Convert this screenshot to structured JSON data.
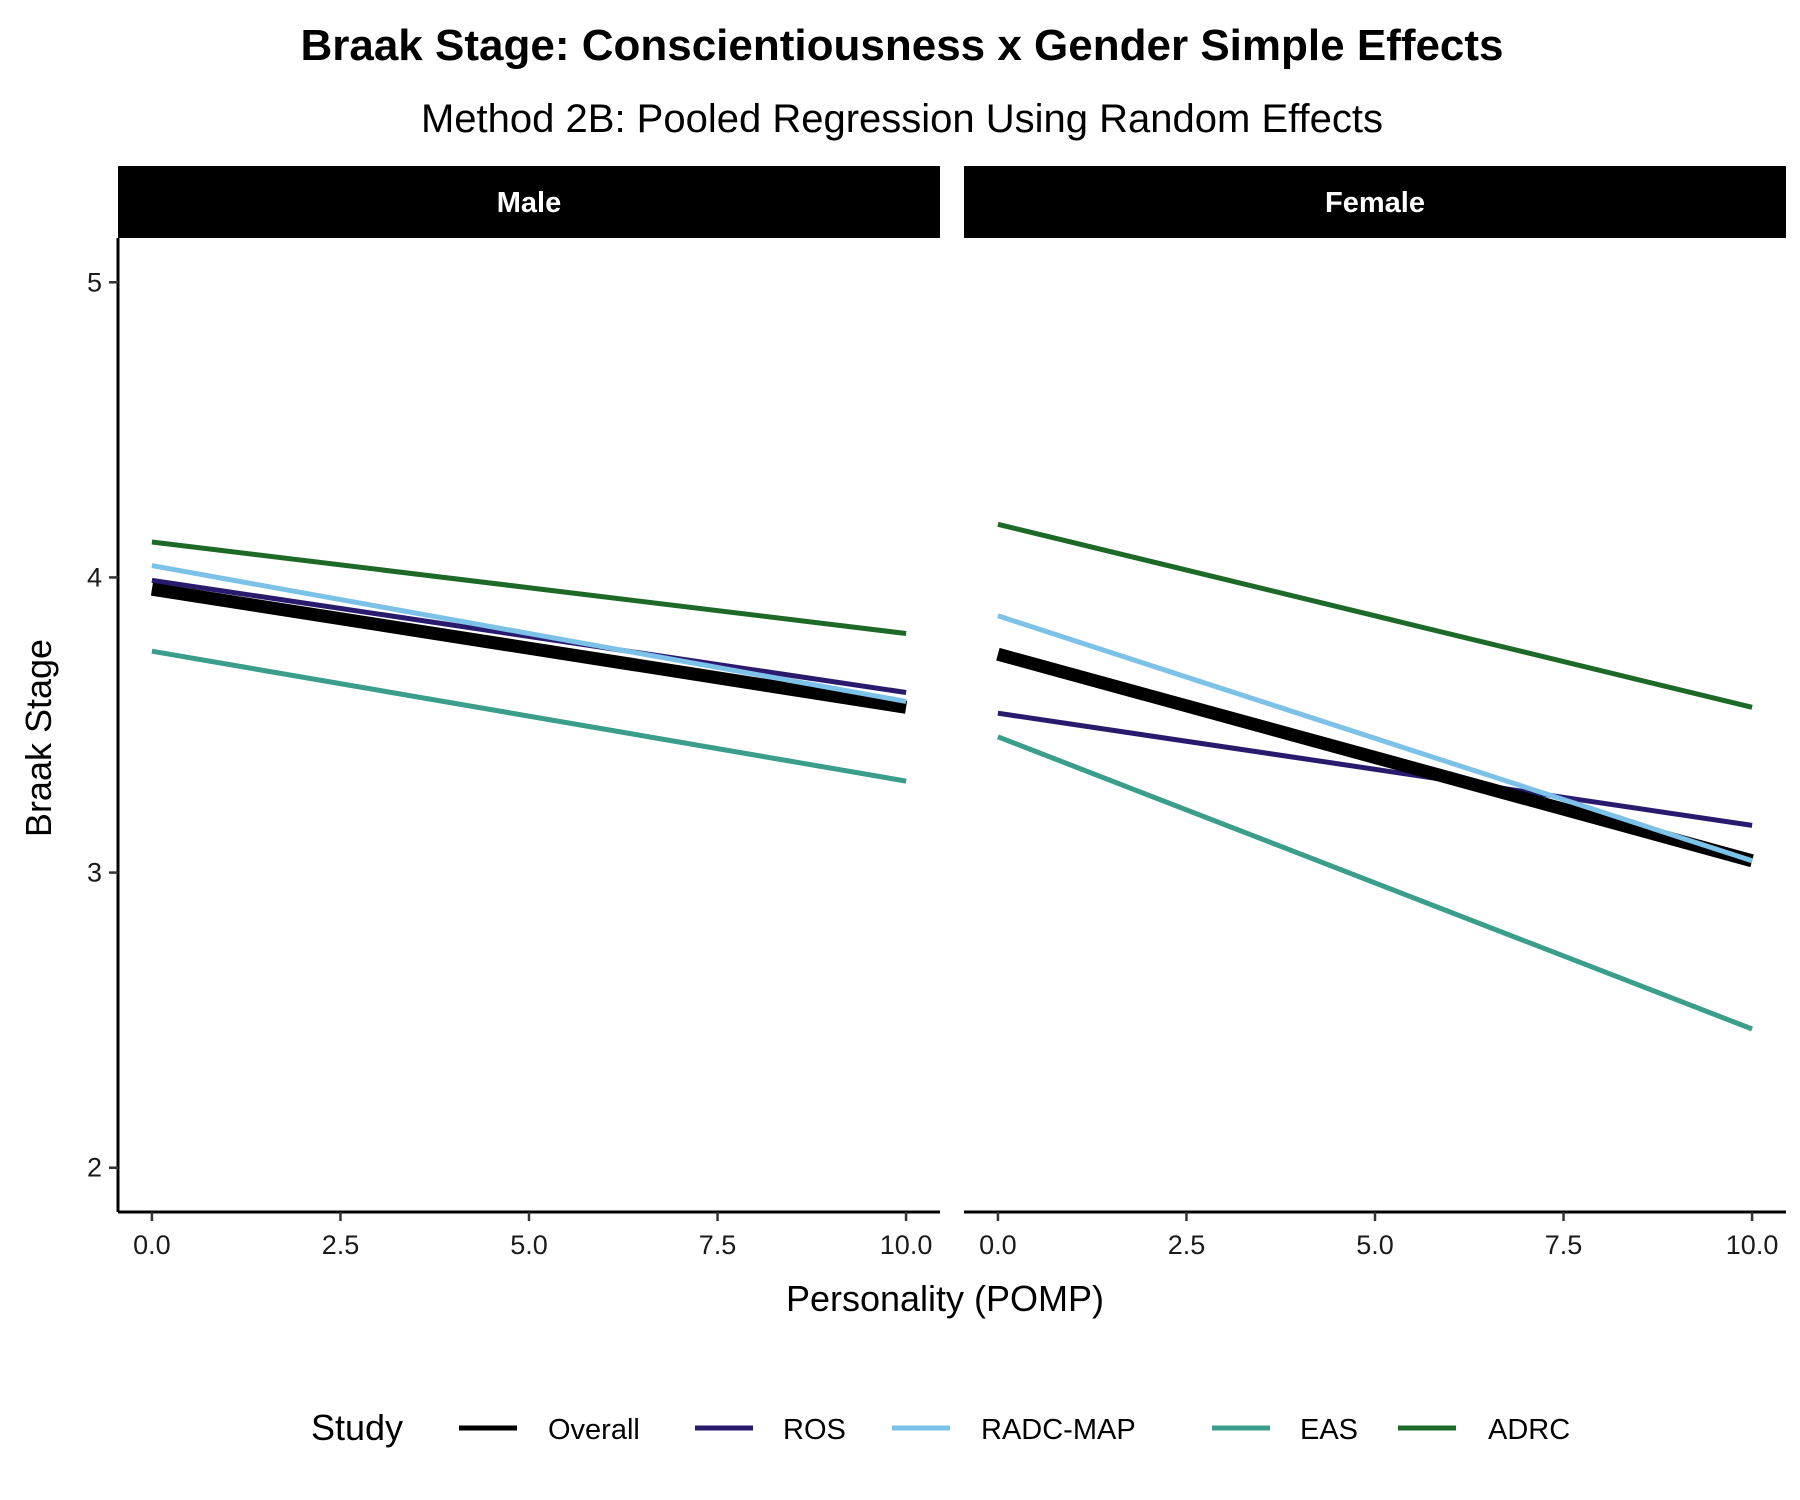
{
  "chart_data": {
    "type": "line",
    "title": "Braak Stage: Conscientiousness x Gender Simple Effects",
    "subtitle": "Method 2B: Pooled Regression Using Random Effects",
    "xlabel": "Personality (POMP)",
    "ylabel": "Braak Stage",
    "xlim": [
      -0.45,
      10.45
    ],
    "ylim": [
      1.85,
      5.15
    ],
    "x_ticks": [
      0.0,
      2.5,
      5.0,
      7.5,
      10.0
    ],
    "x_tick_labels": [
      "0.0",
      "2.5",
      "5.0",
      "7.5",
      "10.0"
    ],
    "y_ticks": [
      2,
      3,
      4,
      5
    ],
    "y_tick_labels": [
      "2",
      "3",
      "4",
      "5"
    ],
    "grid": false,
    "legend": {
      "title": "Study",
      "position": "bottom",
      "entries": [
        "Overall",
        "ROS",
        "RADC-MAP",
        "EAS",
        "ADRC"
      ]
    },
    "series_colors": {
      "Overall": "#000000",
      "ROS": "#2a1a6e",
      "RADC-MAP": "#7cc1e8",
      "EAS": "#3a9e8a",
      "ADRC": "#1d6a28"
    },
    "facets": [
      {
        "label": "Male",
        "series": [
          {
            "name": "Overall",
            "x": [
              0,
              10
            ],
            "y": [
              3.96,
              3.56
            ]
          },
          {
            "name": "ROS",
            "x": [
              0,
              10
            ],
            "y": [
              3.99,
              3.61
            ]
          },
          {
            "name": "RADC-MAP",
            "x": [
              0,
              10
            ],
            "y": [
              4.04,
              3.58
            ]
          },
          {
            "name": "EAS",
            "x": [
              0,
              10
            ],
            "y": [
              3.75,
              3.31
            ]
          },
          {
            "name": "ADRC",
            "x": [
              0,
              10
            ],
            "y": [
              4.12,
              3.81
            ]
          }
        ]
      },
      {
        "label": "Female",
        "series": [
          {
            "name": "Overall",
            "x": [
              0,
              10
            ],
            "y": [
              3.74,
              3.04
            ]
          },
          {
            "name": "ROS",
            "x": [
              0,
              10
            ],
            "y": [
              3.54,
              3.16
            ]
          },
          {
            "name": "RADC-MAP",
            "x": [
              0,
              10
            ],
            "y": [
              3.87,
              3.04
            ]
          },
          {
            "name": "EAS",
            "x": [
              0,
              10
            ],
            "y": [
              3.46,
              2.47
            ]
          },
          {
            "name": "ADRC",
            "x": [
              0,
              10
            ],
            "y": [
              4.18,
              3.56
            ]
          }
        ]
      }
    ]
  }
}
